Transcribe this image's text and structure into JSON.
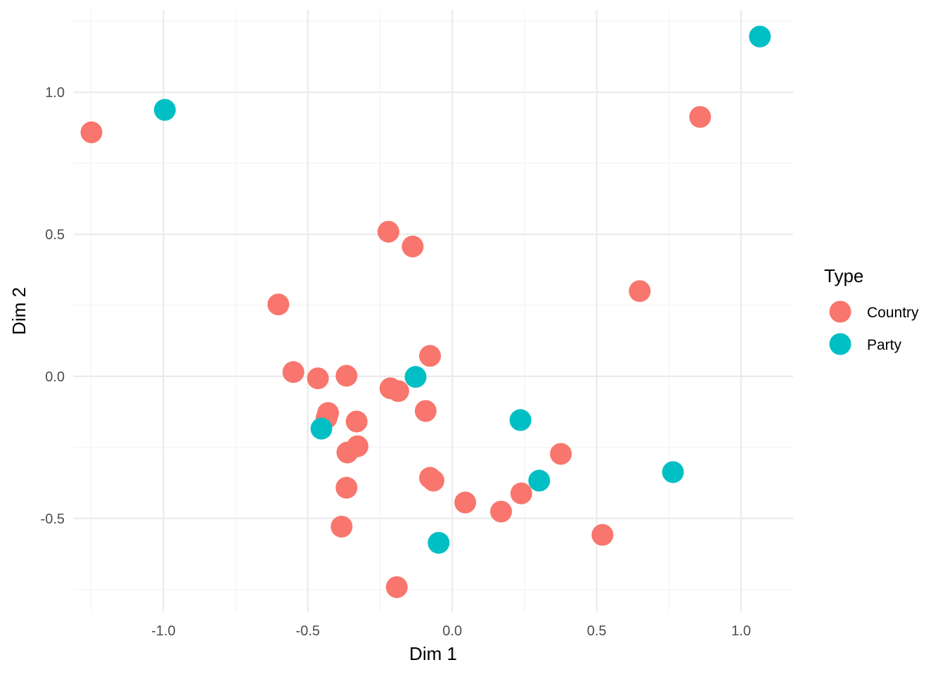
{
  "chart_data": {
    "type": "scatter",
    "title": "",
    "xlabel": "Dim 1",
    "ylabel": "Dim 2",
    "xlim": [
      -1.31,
      1.18
    ],
    "ylim": [
      -0.83,
      1.29
    ],
    "x_ticks": [
      -1.0,
      -0.5,
      0.0,
      0.5,
      1.0
    ],
    "x_tick_labels": [
      "-1.0",
      "-0.5",
      "0.0",
      "0.5",
      "1.0"
    ],
    "y_ticks": [
      -0.5,
      0.0,
      0.5,
      1.0
    ],
    "y_tick_labels": [
      "-0.5",
      "0.0",
      "0.5",
      "1.0"
    ],
    "grid": true,
    "legend": {
      "title": "Type",
      "placement": "right"
    },
    "series": [
      {
        "name": "Country",
        "color": "#F8766D",
        "points": [
          [
            -1.249,
            0.859
          ],
          [
            0.858,
            0.913
          ],
          [
            -0.221,
            0.509
          ],
          [
            -0.137,
            0.457
          ],
          [
            -0.602,
            0.253
          ],
          [
            0.649,
            0.3
          ],
          [
            -0.55,
            0.015
          ],
          [
            -0.465,
            -0.007
          ],
          [
            -0.366,
            0.002
          ],
          [
            -0.077,
            0.072
          ],
          [
            -0.214,
            -0.042
          ],
          [
            -0.187,
            -0.052
          ],
          [
            -0.092,
            -0.122
          ],
          [
            -0.43,
            -0.129
          ],
          [
            -0.435,
            -0.146
          ],
          [
            -0.331,
            -0.159
          ],
          [
            -0.328,
            -0.246
          ],
          [
            -0.363,
            -0.268
          ],
          [
            -0.366,
            -0.392
          ],
          [
            -0.077,
            -0.357
          ],
          [
            -0.065,
            -0.367
          ],
          [
            -0.383,
            -0.529
          ],
          [
            0.045,
            -0.444
          ],
          [
            0.239,
            -0.412
          ],
          [
            0.169,
            -0.476
          ],
          [
            0.376,
            -0.273
          ],
          [
            0.52,
            -0.558
          ],
          [
            -0.192,
            -0.742
          ]
        ]
      },
      {
        "name": "Party",
        "color": "#00BFC4",
        "points": [
          [
            -0.995,
            0.938
          ],
          [
            1.065,
            1.196
          ],
          [
            -0.127,
            -0.002
          ],
          [
            -0.453,
            -0.184
          ],
          [
            0.236,
            -0.154
          ],
          [
            0.301,
            -0.367
          ],
          [
            0.764,
            -0.337
          ],
          [
            -0.047,
            -0.586
          ]
        ]
      }
    ]
  }
}
